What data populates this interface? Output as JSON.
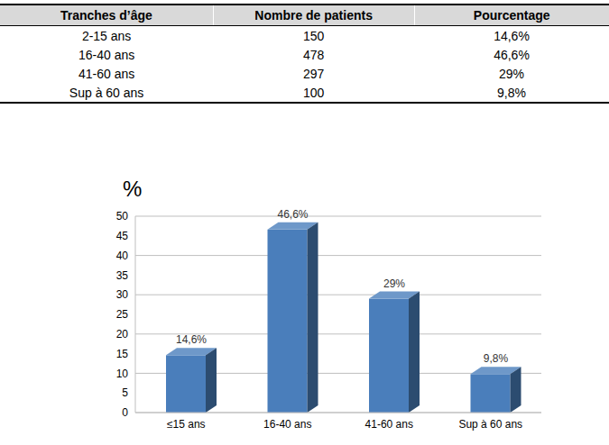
{
  "table": {
    "header": [
      "Tranches d’âge",
      "Nombre de patients",
      "Pourcentage"
    ],
    "rows": [
      [
        "2-15 ans",
        "150",
        "14,6%"
      ],
      [
        "16-40 ans",
        "478",
        "46,6%"
      ],
      [
        "41-60 ans",
        "297",
        "29%"
      ],
      [
        "Sup à 60 ans",
        "100",
        "9,8%"
      ]
    ]
  },
  "chart_data": {
    "type": "bar",
    "y_label": "%",
    "categories": [
      "≤15 ans",
      "16-40 ans",
      "41-60 ans",
      "Sup à 60 ans"
    ],
    "values": [
      14.6,
      46.6,
      29,
      9.8
    ],
    "value_labels": [
      "14,6%",
      "46,6%",
      "29%",
      "9,8%"
    ],
    "data_labels": true,
    "color": "#4a7ebb",
    "ylim": [
      0,
      50
    ],
    "yticks": [
      0,
      5,
      10,
      15,
      20,
      25,
      30,
      35,
      40,
      45,
      50
    ],
    "grid": true
  }
}
